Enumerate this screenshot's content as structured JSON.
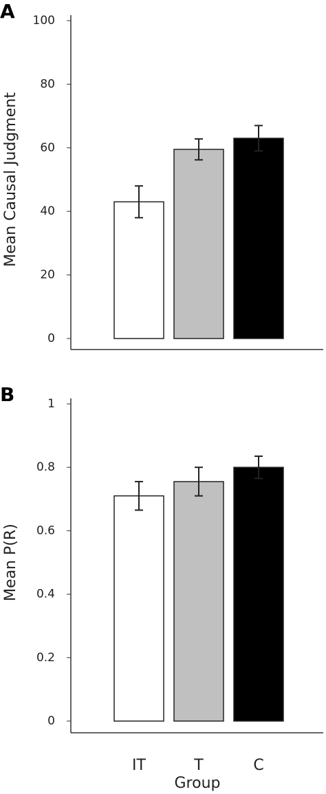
{
  "chart_data": [
    {
      "type": "bar",
      "panel_label": "A",
      "ylabel": "Mean Causal Judgment",
      "categories": [
        null,
        null,
        null
      ],
      "values": [
        43,
        59.5,
        63
      ],
      "errors": [
        5,
        3.3,
        4
      ],
      "colors": [
        "#ffffff",
        "#c0c0c0",
        "#000000"
      ],
      "ylim": [
        0,
        100
      ],
      "yticks": [
        0,
        20,
        40,
        60,
        80,
        100
      ]
    },
    {
      "type": "bar",
      "panel_label": "B",
      "ylabel": "Mean P(R)",
      "xlabel": "Group",
      "categories": [
        "IT",
        "T",
        "C"
      ],
      "values": [
        0.71,
        0.755,
        0.8
      ],
      "errors": [
        0.045,
        0.045,
        0.035
      ],
      "colors": [
        "#ffffff",
        "#c0c0c0",
        "#000000"
      ],
      "ylim": [
        0,
        1
      ],
      "yticks": [
        0,
        0.2,
        0.4,
        0.6,
        0.8,
        1
      ]
    }
  ]
}
